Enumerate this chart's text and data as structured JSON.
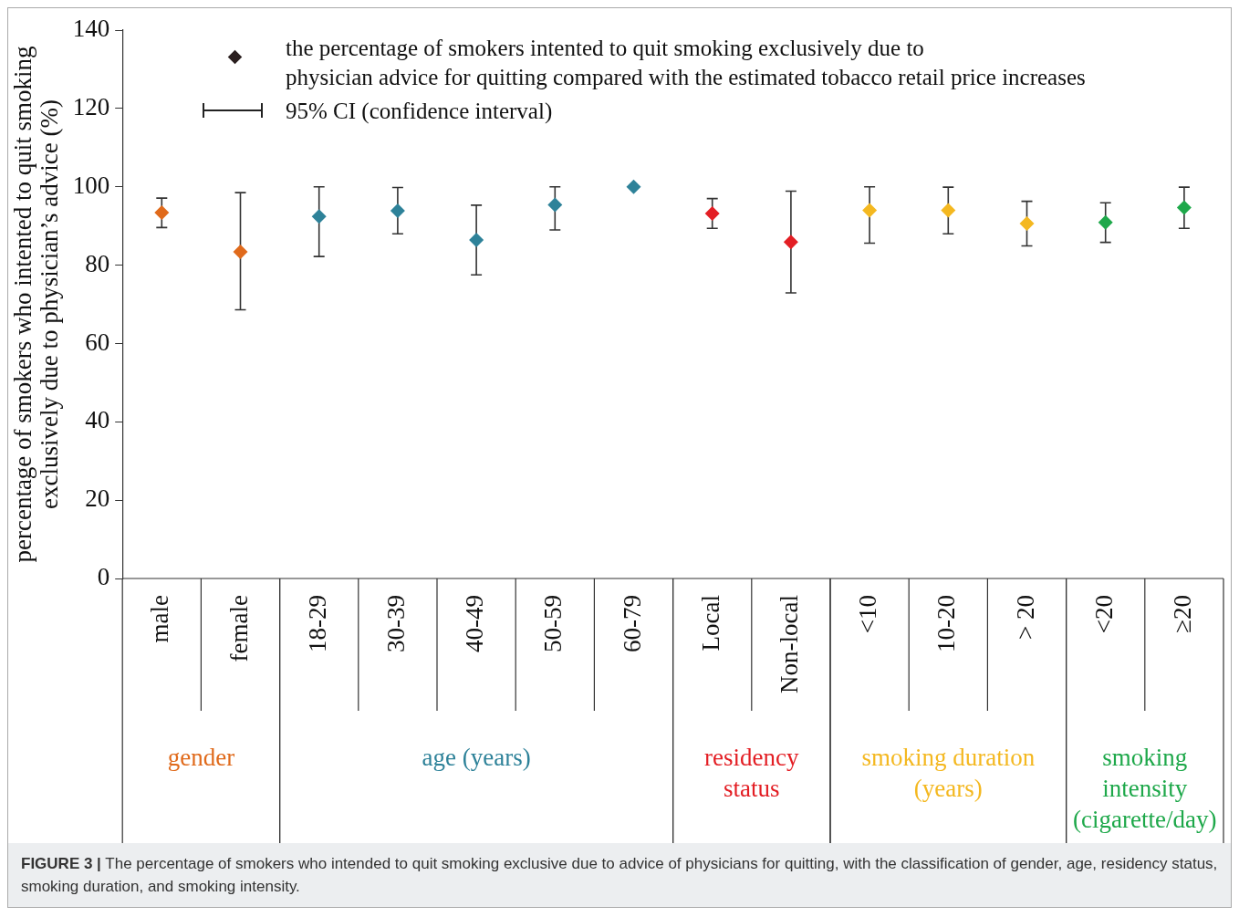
{
  "chart_data": {
    "type": "scatter",
    "ylabel": "percentage of smokers who intented to quit smoking\nexclusively due to physician’s advice (%)",
    "categories": [
      "male",
      "female",
      "18-29",
      "30-39",
      "40-49",
      "50-59",
      "60-79",
      "Local",
      "Non-local",
      "<10",
      "10-20",
      "> 20",
      "<20",
      "≥20"
    ],
    "ylim": [
      0,
      140
    ],
    "yticks": [
      0,
      20,
      40,
      60,
      80,
      100,
      120,
      140
    ],
    "marker": "diamond",
    "series": [
      {
        "name": "gender",
        "color": "#e06a1b",
        "values": [
          93.4,
          83.4,
          null,
          null,
          null,
          null,
          null,
          null,
          null,
          null,
          null,
          null,
          null,
          null
        ],
        "errors": [
          [
            89.6,
            97.1
          ],
          [
            68.6,
            98.5
          ],
          null,
          null,
          null,
          null,
          null,
          null,
          null,
          null,
          null,
          null,
          null,
          null
        ]
      },
      {
        "name": "age (years)",
        "color": "#2e8299",
        "values": [
          null,
          null,
          92.4,
          93.9,
          86.4,
          95.4,
          100,
          null,
          null,
          null,
          null,
          null,
          null,
          null
        ],
        "errors": [
          null,
          null,
          [
            82.2,
            100
          ],
          [
            88,
            99.8
          ],
          [
            77.5,
            95.3
          ],
          [
            89,
            100
          ],
          null,
          null,
          null,
          null,
          null,
          null,
          null,
          null
        ]
      },
      {
        "name": "residency status",
        "color": "#e31e24",
        "values": [
          null,
          null,
          null,
          null,
          null,
          null,
          null,
          93.2,
          85.9,
          null,
          null,
          null,
          null,
          null
        ],
        "errors": [
          null,
          null,
          null,
          null,
          null,
          null,
          null,
          [
            89.4,
            97
          ],
          [
            72.9,
            98.9
          ],
          null,
          null,
          null,
          null,
          null
        ]
      },
      {
        "name": "smoking duration (years)",
        "color": "#f4b820",
        "values": [
          null,
          null,
          null,
          null,
          null,
          null,
          null,
          null,
          null,
          94,
          94,
          90.6,
          null,
          null
        ],
        "errors": [
          null,
          null,
          null,
          null,
          null,
          null,
          null,
          null,
          null,
          [
            85.6,
            100
          ],
          [
            88,
            99.9
          ],
          [
            84.9,
            96.3
          ],
          null,
          null
        ]
      },
      {
        "name": "smoking intensity (cigarette/day)",
        "color": "#1ea84a",
        "values": [
          null,
          null,
          null,
          null,
          null,
          null,
          null,
          null,
          null,
          null,
          null,
          null,
          90.9,
          94.7
        ],
        "errors": [
          null,
          null,
          null,
          null,
          null,
          null,
          null,
          null,
          null,
          null,
          null,
          null,
          [
            85.8,
            95.9
          ],
          [
            89.4,
            99.9
          ]
        ]
      }
    ],
    "annotations": [
      "the percentage of smokers intented to quit smoking exclusively due to\nphysician advice for quitting compared with the estimated tobacco retail price increases",
      "95% CI (confidence interval)",
      "FIGURE 3 | The percentage of smokers who intended to quit smoking exclusive due to advice of physicians for quitting, with the classification of gender, age, residency status, smoking duration, and smoking intensity."
    ]
  }
}
